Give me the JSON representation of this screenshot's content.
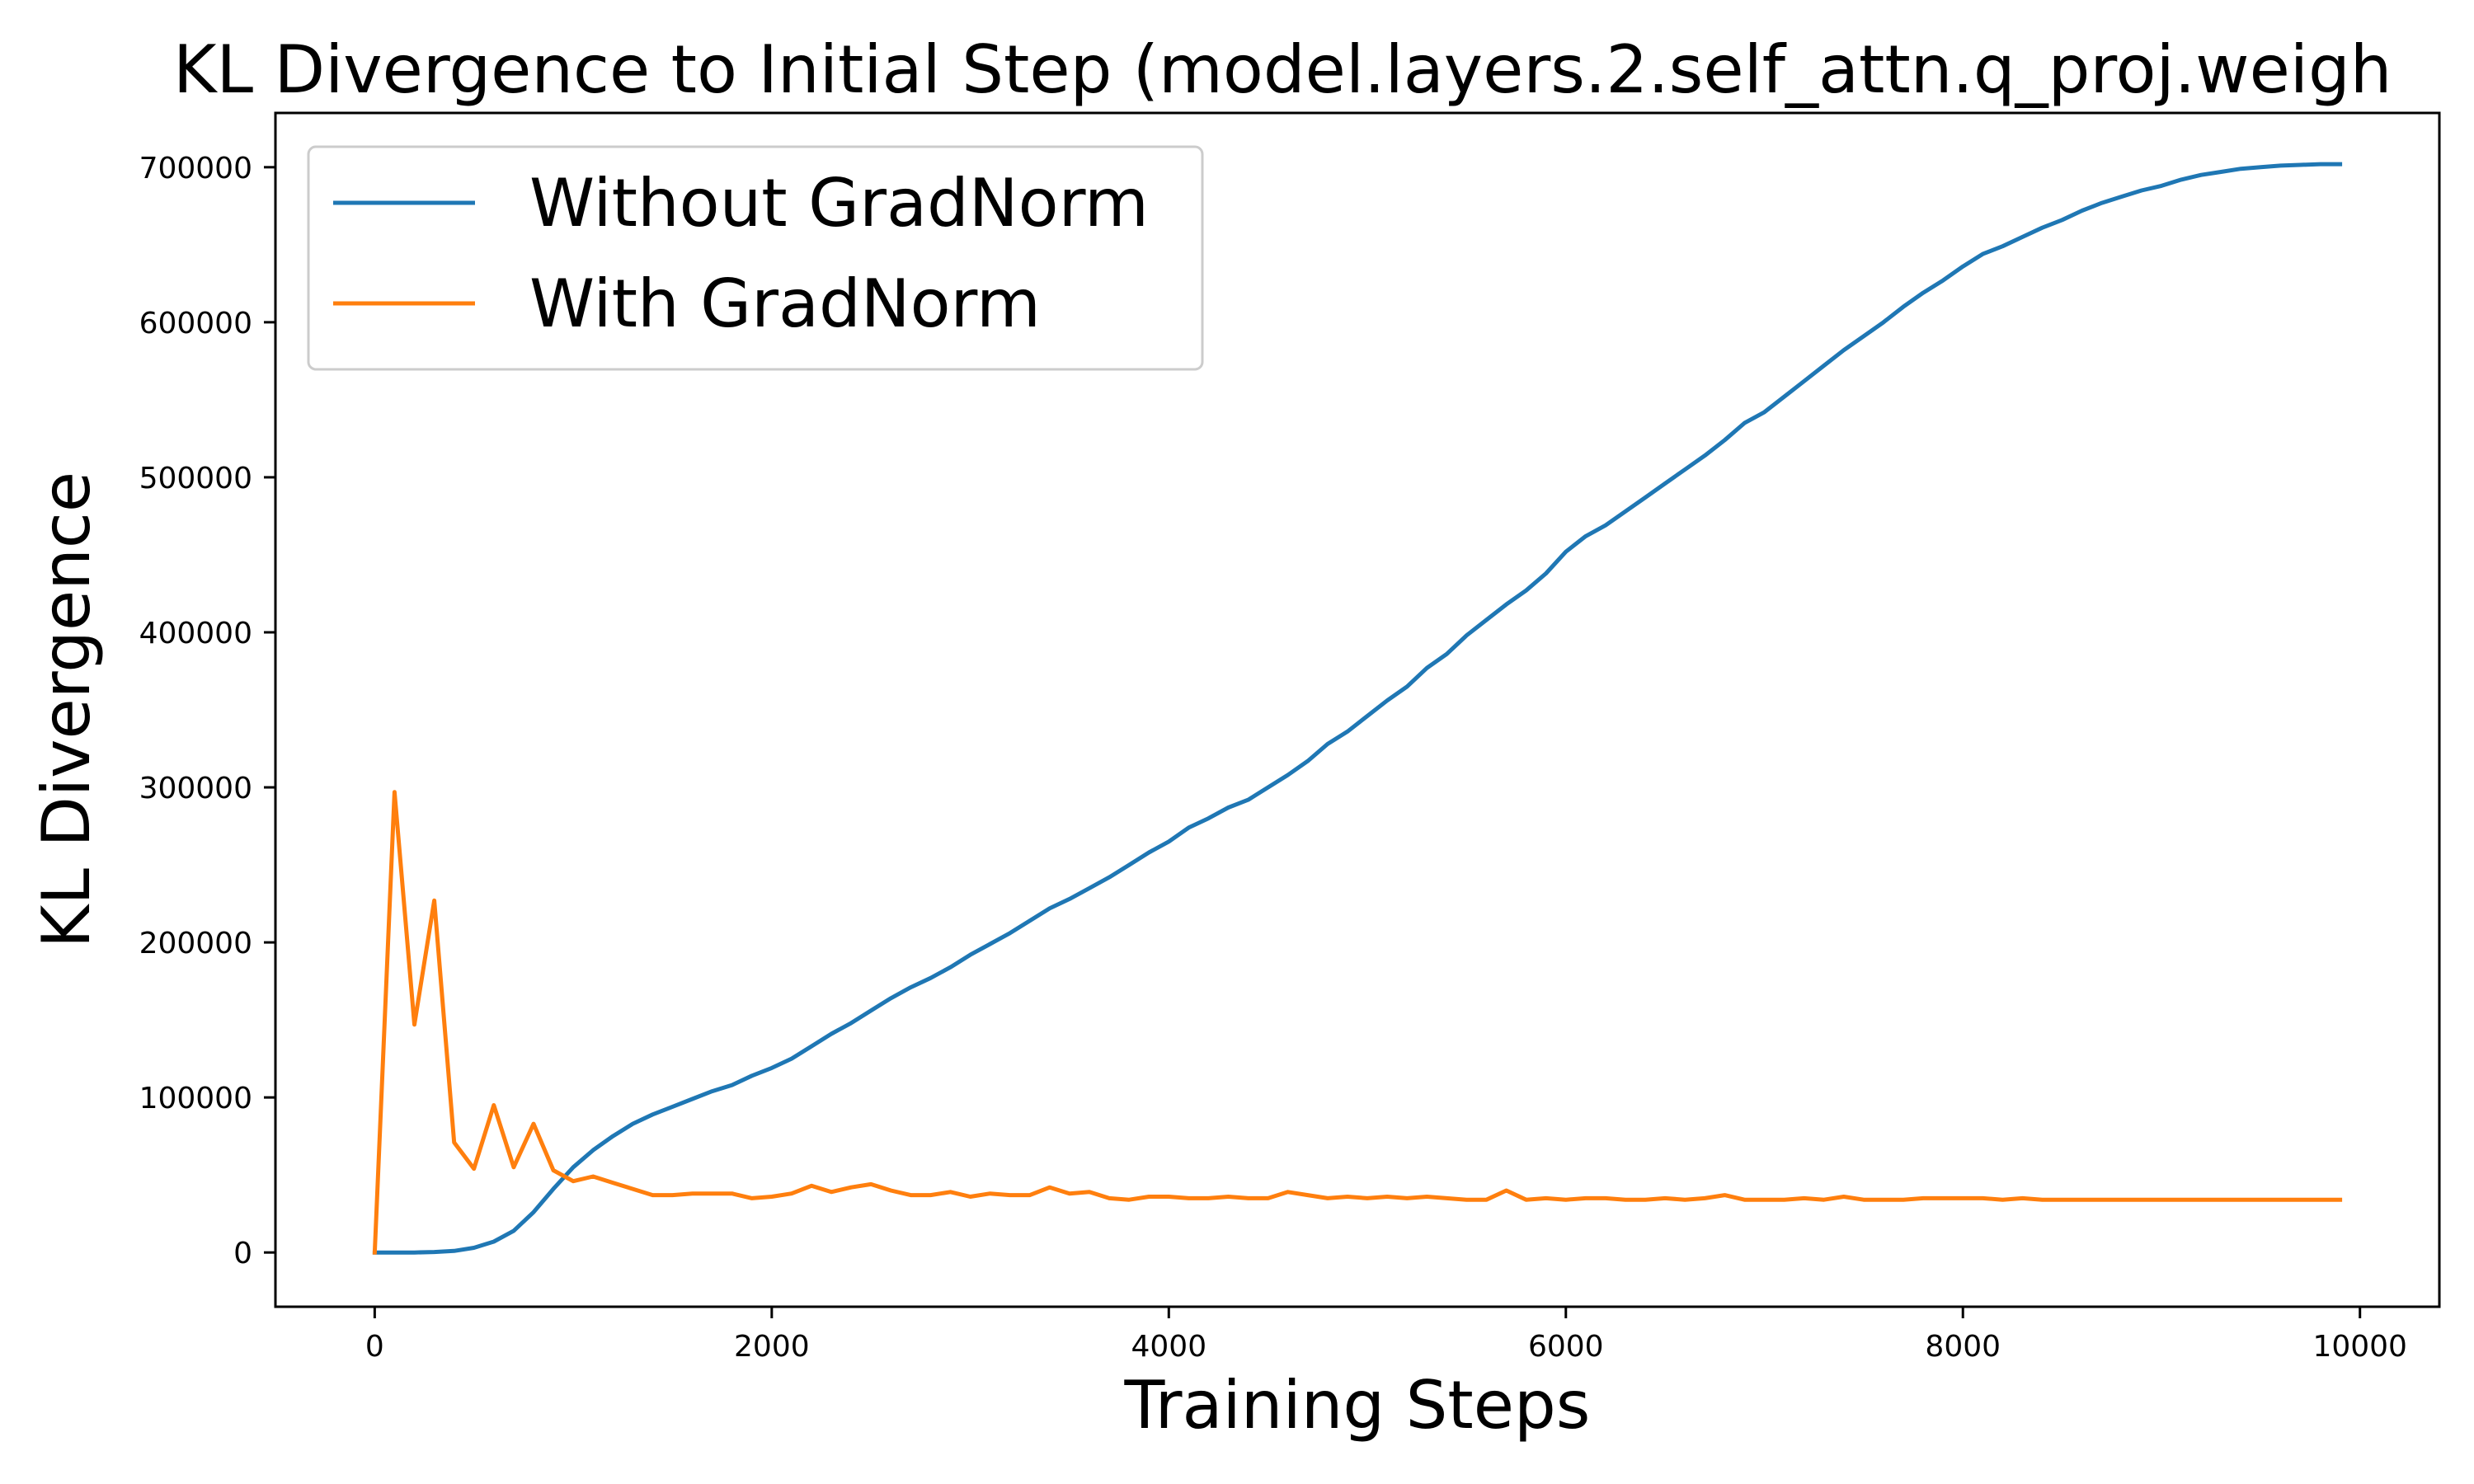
{
  "chart_data": {
    "type": "line",
    "title": "KL Divergence to Initial Step (model.layers.2.self_attn.q_proj.weigh",
    "xlabel": "Training Steps",
    "ylabel": "KL Divergence",
    "xlim": [
      -500,
      10400
    ],
    "ylim": [
      -35000,
      735000
    ],
    "x_ticks": [
      0,
      2000,
      4000,
      6000,
      8000,
      10000
    ],
    "y_ticks": [
      0,
      100000,
      200000,
      300000,
      400000,
      500000,
      600000,
      700000
    ],
    "grid": false,
    "legend_position": "upper-left",
    "x": [
      0,
      100,
      200,
      300,
      400,
      500,
      600,
      700,
      800,
      900,
      1000,
      1100,
      1200,
      1300,
      1400,
      1500,
      1600,
      1700,
      1800,
      1900,
      2000,
      2100,
      2200,
      2300,
      2400,
      2500,
      2600,
      2700,
      2800,
      2900,
      3000,
      3100,
      3200,
      3300,
      3400,
      3500,
      3600,
      3700,
      3800,
      3900,
      4000,
      4100,
      4200,
      4300,
      4400,
      4500,
      4600,
      4700,
      4800,
      4900,
      5000,
      5100,
      5200,
      5300,
      5400,
      5500,
      5600,
      5700,
      5800,
      5900,
      6000,
      6100,
      6200,
      6300,
      6400,
      6500,
      6600,
      6700,
      6800,
      6900,
      7000,
      7100,
      7200,
      7300,
      7400,
      7500,
      7600,
      7700,
      7800,
      7900,
      8000,
      8100,
      8200,
      8300,
      8400,
      8500,
      8600,
      8700,
      8800,
      8900,
      9000,
      9100,
      9200,
      9300,
      9400,
      9500,
      9600,
      9700,
      9800,
      9900
    ],
    "series": [
      {
        "name": "Without GradNorm",
        "color": "#1f77b4",
        "values": [
          0,
          0,
          0,
          300,
          1000,
          3000,
          7000,
          14000,
          26000,
          41000,
          55000,
          66000,
          75000,
          83000,
          89000,
          94000,
          99000,
          104000,
          108000,
          114000,
          119000,
          125000,
          133000,
          141000,
          148000,
          156000,
          164000,
          171000,
          177000,
          184000,
          192000,
          199000,
          206000,
          214000,
          222000,
          228000,
          235000,
          242000,
          250000,
          258000,
          265000,
          274000,
          280000,
          287000,
          292000,
          300000,
          308000,
          317000,
          328000,
          336000,
          346000,
          356000,
          365000,
          377000,
          386000,
          398000,
          408000,
          418000,
          427000,
          438000,
          452000,
          462000,
          469000,
          478000,
          487000,
          496000,
          505000,
          514000,
          524000,
          535000,
          542000,
          552000,
          562000,
          572000,
          582000,
          591000,
          600000,
          610000,
          619000,
          627000,
          636000,
          644000,
          649000,
          655000,
          661000,
          666000,
          672000,
          677000,
          681000,
          685000,
          688000,
          692000,
          695000,
          697000,
          699000,
          700000,
          701000,
          701500,
          702000,
          702000
        ]
      },
      {
        "name": "With GradNorm",
        "color": "#ff7f0e",
        "values": [
          0,
          297000,
          147000,
          227000,
          71000,
          54000,
          95000,
          55000,
          83000,
          53000,
          46000,
          49000,
          45000,
          41000,
          37000,
          37000,
          38000,
          38000,
          38000,
          35000,
          36000,
          38000,
          43000,
          39000,
          42000,
          44000,
          40000,
          37000,
          37000,
          39000,
          36000,
          38000,
          37000,
          37000,
          42000,
          38000,
          39000,
          35000,
          34000,
          36000,
          36000,
          35000,
          35000,
          36000,
          35000,
          35000,
          39000,
          37000,
          35000,
          36000,
          35000,
          36000,
          35000,
          36000,
          35000,
          34000,
          34000,
          40000,
          34000,
          35000,
          34000,
          35000,
          35000,
          34000,
          34000,
          35000,
          34000,
          35000,
          37000,
          34000,
          34000,
          34000,
          35000,
          34000,
          36000,
          34000,
          34000,
          34000,
          35000,
          35000,
          35000,
          35000,
          34000,
          35000,
          34000,
          34000,
          34000,
          34000,
          34000,
          34000,
          34000,
          34000,
          34000,
          34000,
          34000,
          34000,
          34000,
          34000,
          34000,
          34000
        ]
      }
    ]
  }
}
